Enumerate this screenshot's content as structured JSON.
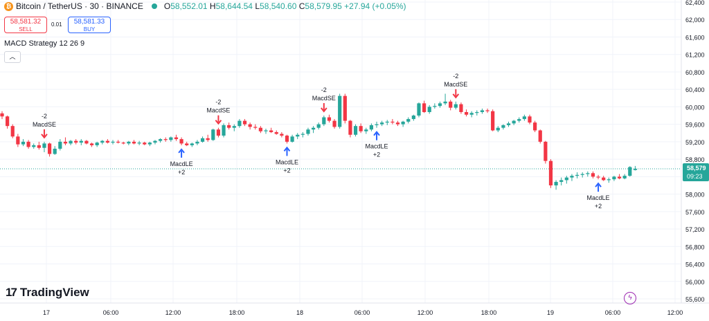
{
  "header": {
    "coin_icon": "bitcoin-icon",
    "symbol": "Bitcoin / TetherUS · 30 · BINANCE",
    "open_label": "O",
    "open": "58,552.01",
    "high_label": "H",
    "high": "58,644.54",
    "low_label": "L",
    "low": "58,540.60",
    "close_label": "C",
    "close": "58,579.95",
    "change": "+27.94 (+0.05%)"
  },
  "trade": {
    "sell_price": "58,581.32",
    "sell_label": "SELL",
    "spread": "0.01",
    "buy_price": "58,581.33",
    "buy_label": "BUY"
  },
  "indicator": {
    "label": "MACD Strategy 12 26 9",
    "collapse_icon": "chevron-up-icon"
  },
  "price_axis": {
    "ticks": [
      "62,400",
      "62,000",
      "61,600",
      "61,200",
      "60,800",
      "60,400",
      "60,000",
      "59,600",
      "59,200",
      "58,800",
      "58,400",
      "58,000",
      "57,600",
      "57,200",
      "56,800",
      "56,400",
      "56,000",
      "55,600"
    ],
    "last_price": "58,579",
    "countdown": "09:23"
  },
  "time_axis": {
    "ticks": [
      "17",
      "06:00",
      "12:00",
      "18:00",
      "18",
      "06:00",
      "12:00",
      "18:00",
      "19",
      "06:00",
      "12:00"
    ]
  },
  "signals": [
    {
      "kind": "short",
      "lines": [
        "-2",
        "MacdSE"
      ]
    },
    {
      "kind": "long",
      "lines": [
        "MacdLE",
        "+2"
      ]
    },
    {
      "kind": "short",
      "lines": [
        "-2",
        "MacdSE"
      ]
    },
    {
      "kind": "long",
      "lines": [
        "MacdLE",
        "+2"
      ]
    },
    {
      "kind": "short",
      "lines": [
        "-2",
        "MacdSE"
      ]
    },
    {
      "kind": "long",
      "lines": [
        "MacdLE",
        "+2"
      ]
    },
    {
      "kind": "short",
      "lines": [
        "-2",
        "MacdSE"
      ]
    },
    {
      "kind": "long",
      "lines": [
        "MacdLE",
        "+2"
      ]
    }
  ],
  "branding": {
    "logo_mark": "17",
    "name": "TradingView"
  },
  "colors": {
    "up": "#26a69a",
    "down": "#f23645",
    "long_arrow": "#2962ff",
    "short_arrow": "#f23645"
  },
  "chart_data": {
    "type": "candlestick",
    "interval": "30",
    "ylim": [
      55500,
      62500
    ],
    "x_labels": [
      "17",
      "06:00",
      "12:00",
      "18:00",
      "18",
      "06:00",
      "12:00",
      "18:00",
      "19",
      "06:00",
      "12:00"
    ],
    "candles_ohlc": [
      [
        59850,
        59900,
        59720,
        59780
      ],
      [
        59780,
        59800,
        59500,
        59560
      ],
      [
        59560,
        59600,
        59280,
        59320
      ],
      [
        59320,
        59380,
        59080,
        59140
      ],
      [
        59140,
        59260,
        59100,
        59200
      ],
      [
        59200,
        59240,
        59040,
        59080
      ],
      [
        59080,
        59160,
        59040,
        59120
      ],
      [
        59120,
        59200,
        59020,
        59060
      ],
      [
        59060,
        59200,
        58960,
        59160
      ],
      [
        59160,
        59180,
        58860,
        58920
      ],
      [
        58920,
        59100,
        58900,
        59040
      ],
      [
        59040,
        59260,
        59000,
        59200
      ],
      [
        59200,
        59300,
        59120,
        59160
      ],
      [
        59160,
        59240,
        59120,
        59220
      ],
      [
        59220,
        59260,
        59140,
        59180
      ],
      [
        59180,
        59260,
        59120,
        59220
      ],
      [
        59220,
        59240,
        59140,
        59160
      ],
      [
        59160,
        59180,
        59080,
        59120
      ],
      [
        59120,
        59200,
        59080,
        59180
      ],
      [
        59180,
        59240,
        59140,
        59220
      ],
      [
        59220,
        59260,
        59160,
        59180
      ],
      [
        59180,
        59240,
        59140,
        59200
      ],
      [
        59200,
        59240,
        59160,
        59180
      ],
      [
        59180,
        59200,
        59140,
        59160
      ],
      [
        59160,
        59220,
        59120,
        59200
      ],
      [
        59200,
        59240,
        59140,
        59160
      ],
      [
        59160,
        59220,
        59120,
        59180
      ],
      [
        59180,
        59200,
        59120,
        59140
      ],
      [
        59140,
        59200,
        59100,
        59180
      ],
      [
        59180,
        59240,
        59140,
        59220
      ],
      [
        59220,
        59280,
        59180,
        59260
      ],
      [
        59260,
        59300,
        59200,
        59240
      ],
      [
        59240,
        59320,
        59200,
        59300
      ],
      [
        59300,
        59360,
        59220,
        59260
      ],
      [
        59260,
        59300,
        59120,
        59160
      ],
      [
        59160,
        59200,
        59100,
        59120
      ],
      [
        59120,
        59180,
        59080,
        59160
      ],
      [
        59160,
        59240,
        59120,
        59200
      ],
      [
        59200,
        59320,
        59180,
        59280
      ],
      [
        59280,
        59360,
        59200,
        59240
      ],
      [
        59240,
        59500,
        59220,
        59480
      ],
      [
        59480,
        59520,
        59300,
        59340
      ],
      [
        59340,
        59620,
        59300,
        59580
      ],
      [
        59580,
        59640,
        59480,
        59520
      ],
      [
        59520,
        59600,
        59440,
        59560
      ],
      [
        59560,
        59720,
        59520,
        59680
      ],
      [
        59680,
        59720,
        59560,
        59600
      ],
      [
        59600,
        59640,
        59480,
        59540
      ],
      [
        59540,
        59600,
        59480,
        59520
      ],
      [
        59520,
        59560,
        59400,
        59440
      ],
      [
        59440,
        59500,
        59380,
        59460
      ],
      [
        59460,
        59520,
        59400,
        59420
      ],
      [
        59420,
        59460,
        59360,
        59380
      ],
      [
        59380,
        59420,
        59300,
        59340
      ],
      [
        59340,
        59360,
        59160,
        59200
      ],
      [
        59200,
        59360,
        59180,
        59320
      ],
      [
        59320,
        59400,
        59260,
        59360
      ],
      [
        59360,
        59420,
        59300,
        59380
      ],
      [
        59380,
        59520,
        59340,
        59480
      ],
      [
        59480,
        59560,
        59400,
        59520
      ],
      [
        59520,
        59640,
        59480,
        59600
      ],
      [
        59600,
        59800,
        59560,
        59760
      ],
      [
        59760,
        59820,
        59640,
        59680
      ],
      [
        59680,
        59720,
        59500,
        59540
      ],
      [
        59540,
        60300,
        59500,
        60250
      ],
      [
        60250,
        60300,
        59620,
        59680
      ],
      [
        59680,
        59700,
        59300,
        59360
      ],
      [
        59360,
        59600,
        59320,
        59560
      ],
      [
        59560,
        59620,
        59400,
        59440
      ],
      [
        59440,
        59520,
        59380,
        59480
      ],
      [
        59480,
        59620,
        59440,
        59580
      ],
      [
        59580,
        59660,
        59520,
        59600
      ],
      [
        59600,
        59680,
        59560,
        59640
      ],
      [
        59640,
        59700,
        59580,
        59660
      ],
      [
        59660,
        59720,
        59600,
        59640
      ],
      [
        59640,
        59680,
        59560,
        59600
      ],
      [
        59600,
        59680,
        59540,
        59660
      ],
      [
        59660,
        59760,
        59620,
        59720
      ],
      [
        59720,
        59820,
        59680,
        59800
      ],
      [
        59800,
        60100,
        59760,
        60080
      ],
      [
        60080,
        60140,
        59860,
        59880
      ],
      [
        59880,
        60040,
        59840,
        60000
      ],
      [
        60000,
        60080,
        59960,
        60020
      ],
      [
        60020,
        60120,
        59980,
        60080
      ],
      [
        60080,
        60300,
        60040,
        60120
      ],
      [
        60120,
        60160,
        59920,
        59980
      ],
      [
        59980,
        60120,
        59940,
        60060
      ],
      [
        60060,
        60100,
        59840,
        59880
      ],
      [
        59880,
        59940,
        59780,
        59820
      ],
      [
        59820,
        59900,
        59760,
        59860
      ],
      [
        59860,
        59920,
        59800,
        59880
      ],
      [
        59880,
        59960,
        59840,
        59920
      ],
      [
        59920,
        59960,
        59860,
        59900
      ],
      [
        59900,
        59940,
        59440,
        59460
      ],
      [
        59460,
        59560,
        59420,
        59520
      ],
      [
        59520,
        59600,
        59480,
        59580
      ],
      [
        59580,
        59660,
        59540,
        59620
      ],
      [
        59620,
        59700,
        59580,
        59680
      ],
      [
        59680,
        59760,
        59640,
        59720
      ],
      [
        59720,
        59820,
        59680,
        59780
      ],
      [
        59780,
        59820,
        59600,
        59640
      ],
      [
        59640,
        59680,
        59420,
        59460
      ],
      [
        59460,
        59480,
        59160,
        59200
      ],
      [
        59200,
        59220,
        58700,
        58760
      ],
      [
        58760,
        58800,
        58140,
        58200
      ],
      [
        58200,
        58320,
        58100,
        58280
      ],
      [
        58280,
        58380,
        58200,
        58320
      ],
      [
        58320,
        58420,
        58240,
        58380
      ],
      [
        58380,
        58460,
        58300,
        58420
      ],
      [
        58420,
        58500,
        58360,
        58440
      ],
      [
        58440,
        58500,
        58380,
        58460
      ],
      [
        58460,
        58520,
        58400,
        58480
      ],
      [
        58480,
        58520,
        58360,
        58400
      ],
      [
        58400,
        58440,
        58340,
        58380
      ],
      [
        58380,
        58420,
        58300,
        58320
      ],
      [
        58320,
        58380,
        58260,
        58340
      ],
      [
        58340,
        58420,
        58300,
        58400
      ],
      [
        58400,
        58460,
        58340,
        58360
      ],
      [
        58360,
        58460,
        58340,
        58420
      ],
      [
        58420,
        58640,
        58400,
        58620
      ],
      [
        58552,
        58645,
        58541,
        58580
      ]
    ],
    "signals": [
      {
        "kind": "short",
        "label": "MacdSE",
        "qty": -2,
        "bar": 8
      },
      {
        "kind": "long",
        "label": "MacdLE",
        "qty": 2,
        "bar": 34
      },
      {
        "kind": "short",
        "label": "MacdSE",
        "qty": -2,
        "bar": 41
      },
      {
        "kind": "long",
        "label": "MacdLE",
        "qty": 2,
        "bar": 54
      },
      {
        "kind": "short",
        "label": "MacdSE",
        "qty": -2,
        "bar": 61
      },
      {
        "kind": "long",
        "label": "MacdLE",
        "qty": 2,
        "bar": 71
      },
      {
        "kind": "short",
        "label": "MacdSE",
        "qty": -2,
        "bar": 86
      },
      {
        "kind": "long",
        "label": "MacdLE",
        "qty": 2,
        "bar": 113
      }
    ],
    "last_price": 58579
  }
}
